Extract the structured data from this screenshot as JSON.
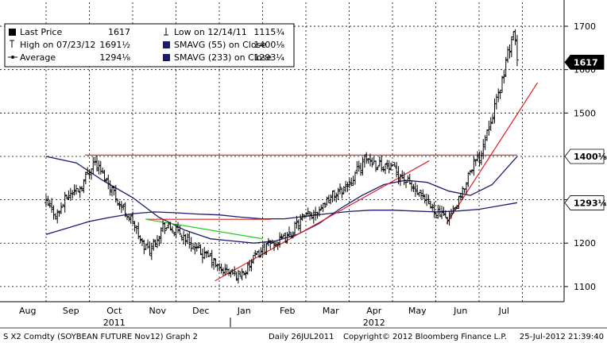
{
  "chart_data": {
    "type": "bar",
    "subtype": "ohlc-price-chart",
    "y_axis": {
      "position": "right",
      "ticks": [
        1100,
        1200,
        1300,
        1400,
        1500,
        1600,
        1700
      ],
      "ylim": [
        1065,
        1755
      ],
      "grid": true
    },
    "x_axis": {
      "months": [
        "Aug",
        "Sep",
        "Oct",
        "Nov",
        "Dec",
        "Jan",
        "Feb",
        "Mar",
        "Apr",
        "May",
        "Jun",
        "Jul"
      ],
      "years": [
        {
          "label": "2011",
          "under": "Oct"
        },
        {
          "label": "2012",
          "under": "Apr"
        }
      ],
      "grid": true
    },
    "legend": {
      "placement": "top-left",
      "rows": [
        [
          {
            "icon": "filled-square-icon",
            "label": "Last Price",
            "value": "1617"
          },
          {
            "icon": "low-marker-icon",
            "label": "Low on 12/14/11",
            "value": "1115¾"
          }
        ],
        [
          {
            "icon": "high-marker-icon",
            "label": "High on 07/23/12",
            "value": "1691½"
          },
          {
            "icon": "navy-square-icon",
            "label": "SMAVG (55) on Close",
            "value": "1400¹⁄₈"
          }
        ],
        [
          {
            "icon": "average-marker-icon",
            "label": "Average",
            "value": "1294¹⁄₈"
          },
          {
            "icon": "navy-square-icon",
            "label": "SMAVG (233) on Close",
            "value": "1293¼"
          }
        ]
      ]
    },
    "price_labels": [
      {
        "text": "1617",
        "value": 1617,
        "bg": "#000000",
        "fg": "#ffffff"
      },
      {
        "text": "1400¹⁄₈",
        "value": 1400,
        "bg": "#ffffff",
        "fg": "#000000"
      },
      {
        "text": "1293¼",
        "value": 1293,
        "bg": "#ffffff",
        "fg": "#000000"
      }
    ],
    "price_path": [
      [
        0.0,
        1290
      ],
      [
        0.25,
        1265
      ],
      [
        0.5,
        1310
      ],
      [
        0.8,
        1330
      ],
      [
        1.1,
        1390
      ],
      [
        1.3,
        1360
      ],
      [
        1.5,
        1330
      ],
      [
        1.7,
        1290
      ],
      [
        2.0,
        1250
      ],
      [
        2.2,
        1200
      ],
      [
        2.4,
        1185
      ],
      [
        2.7,
        1240
      ],
      [
        2.95,
        1230
      ],
      [
        3.2,
        1215
      ],
      [
        3.4,
        1190
      ],
      [
        3.6,
        1175
      ],
      [
        3.8,
        1165
      ],
      [
        4.0,
        1140
      ],
      [
        4.2,
        1135
      ],
      [
        4.4,
        1125
      ],
      [
        4.6,
        1135
      ],
      [
        4.8,
        1165
      ],
      [
        5.0,
        1185
      ],
      [
        5.2,
        1200
      ],
      [
        5.4,
        1205
      ],
      [
        5.6,
        1215
      ],
      [
        5.8,
        1245
      ],
      [
        6.0,
        1260
      ],
      [
        6.2,
        1270
      ],
      [
        6.4,
        1290
      ],
      [
        6.6,
        1310
      ],
      [
        6.8,
        1320
      ],
      [
        7.0,
        1340
      ],
      [
        7.2,
        1370
      ],
      [
        7.4,
        1395
      ],
      [
        7.6,
        1385
      ],
      [
        7.8,
        1380
      ],
      [
        8.0,
        1370
      ],
      [
        8.2,
        1355
      ],
      [
        8.4,
        1335
      ],
      [
        8.6,
        1310
      ],
      [
        8.8,
        1290
      ],
      [
        9.0,
        1275
      ],
      [
        9.2,
        1258
      ],
      [
        9.4,
        1270
      ],
      [
        9.6,
        1310
      ],
      [
        9.8,
        1375
      ],
      [
        10.0,
        1395
      ],
      [
        10.2,
        1470
      ],
      [
        10.4,
        1525
      ],
      [
        10.55,
        1585
      ],
      [
        10.7,
        1650
      ],
      [
        10.8,
        1691.5
      ],
      [
        10.88,
        1617
      ]
    ],
    "sma_55": [
      [
        0.0,
        1400
      ],
      [
        0.7,
        1385
      ],
      [
        1.3,
        1345
      ],
      [
        2.0,
        1305
      ],
      [
        2.6,
        1260
      ],
      [
        3.2,
        1230
      ],
      [
        3.8,
        1210
      ],
      [
        4.3,
        1205
      ],
      [
        4.8,
        1200
      ],
      [
        5.3,
        1205
      ],
      [
        5.8,
        1220
      ],
      [
        6.3,
        1245
      ],
      [
        6.8,
        1280
      ],
      [
        7.3,
        1310
      ],
      [
        7.8,
        1335
      ],
      [
        8.3,
        1345
      ],
      [
        8.8,
        1340
      ],
      [
        9.3,
        1320
      ],
      [
        9.8,
        1310
      ],
      [
        10.3,
        1335
      ],
      [
        10.88,
        1400.125
      ]
    ],
    "sma_233": [
      [
        0.0,
        1220
      ],
      [
        0.5,
        1235
      ],
      [
        1.0,
        1250
      ],
      [
        1.5,
        1260
      ],
      [
        2.0,
        1268
      ],
      [
        2.5,
        1272
      ],
      [
        3.0,
        1270
      ],
      [
        3.5,
        1267
      ],
      [
        4.0,
        1265
      ],
      [
        4.5,
        1260
      ],
      [
        5.0,
        1256
      ],
      [
        5.5,
        1256
      ],
      [
        6.0,
        1262
      ],
      [
        6.5,
        1268
      ],
      [
        7.0,
        1273
      ],
      [
        7.5,
        1276
      ],
      [
        8.0,
        1276
      ],
      [
        8.5,
        1274
      ],
      [
        9.0,
        1272
      ],
      [
        9.5,
        1274
      ],
      [
        10.0,
        1278
      ],
      [
        10.88,
        1293.25
      ]
    ],
    "trendlines": [
      {
        "color": "#e02020",
        "points": [
          [
            0.9,
            1403
          ],
          [
            10.88,
            1403
          ]
        ]
      },
      {
        "color": "#e02020",
        "points": [
          [
            2.3,
            1255
          ],
          [
            5.2,
            1255
          ]
        ]
      },
      {
        "color": "#22cc22",
        "points": [
          [
            2.3,
            1255
          ],
          [
            5.0,
            1210
          ]
        ]
      },
      {
        "color": "#e02020",
        "points": [
          [
            3.9,
            1113
          ],
          [
            8.85,
            1390
          ]
        ]
      },
      {
        "color": "#e02020",
        "points": [
          [
            9.25,
            1245
          ],
          [
            11.35,
            1570
          ]
        ]
      }
    ],
    "colors": {
      "price": "#000000",
      "sma_55": "#1a1a6e",
      "sma_233": "#1a1a6e",
      "grid": "#000000"
    }
  },
  "footer": {
    "ticker": "S X2 Comdty (SOYBEAN FUTURE    Nov12) Graph 2",
    "daily": "Daily 26JUL2011",
    "copyright": "Copyright© 2012 Bloomberg Finance L.P.",
    "timestamp": "25-Jul-2012 21:39:40"
  }
}
